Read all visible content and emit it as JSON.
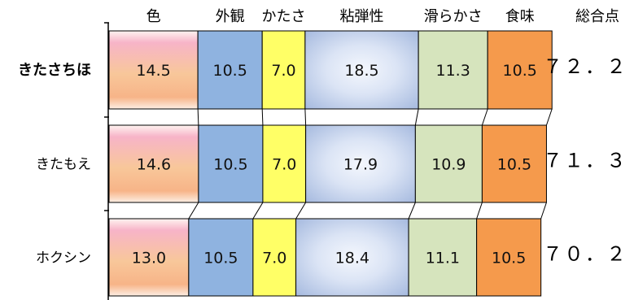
{
  "chart_data": {
    "type": "bar",
    "orientation": "horizontal",
    "stacked": true,
    "categories": [
      "きたさちほ",
      "きたもえ",
      "ホクシン"
    ],
    "series": [
      {
        "name": "色",
        "values": [
          14.5,
          14.6,
          13.0
        ]
      },
      {
        "name": "外観",
        "values": [
          10.5,
          10.5,
          10.5
        ]
      },
      {
        "name": "かたさ",
        "values": [
          7.0,
          7.0,
          7.0
        ]
      },
      {
        "name": "粘弾性",
        "values": [
          18.5,
          17.9,
          18.4
        ]
      },
      {
        "name": "滑らかさ",
        "values": [
          11.3,
          10.9,
          11.1
        ]
      },
      {
        "name": "食味",
        "values": [
          10.5,
          10.5,
          10.5
        ]
      }
    ],
    "value_labels": [
      [
        "14.5",
        "10.5",
        "7.0",
        "18.5",
        "11.3",
        "10.5"
      ],
      [
        "14.6",
        "10.5",
        "7.0",
        "17.9",
        "10.9",
        "10.5"
      ],
      [
        "13.0",
        "10.5",
        "7.0",
        "18.4",
        "11.1",
        "10.5"
      ]
    ],
    "totals_header": "総合点",
    "totals": [
      "７２．２",
      "７１．３",
      "７０．２"
    ],
    "highlighted_category": "きたさちほ",
    "xlim": [
      0,
      73.2
    ],
    "grid": false,
    "series_colors": [
      "#f6c4a0",
      "#8fb3e0",
      "#ffff66",
      "#c9d6ee",
      "#d6e4bd",
      "#f59a4c"
    ]
  }
}
